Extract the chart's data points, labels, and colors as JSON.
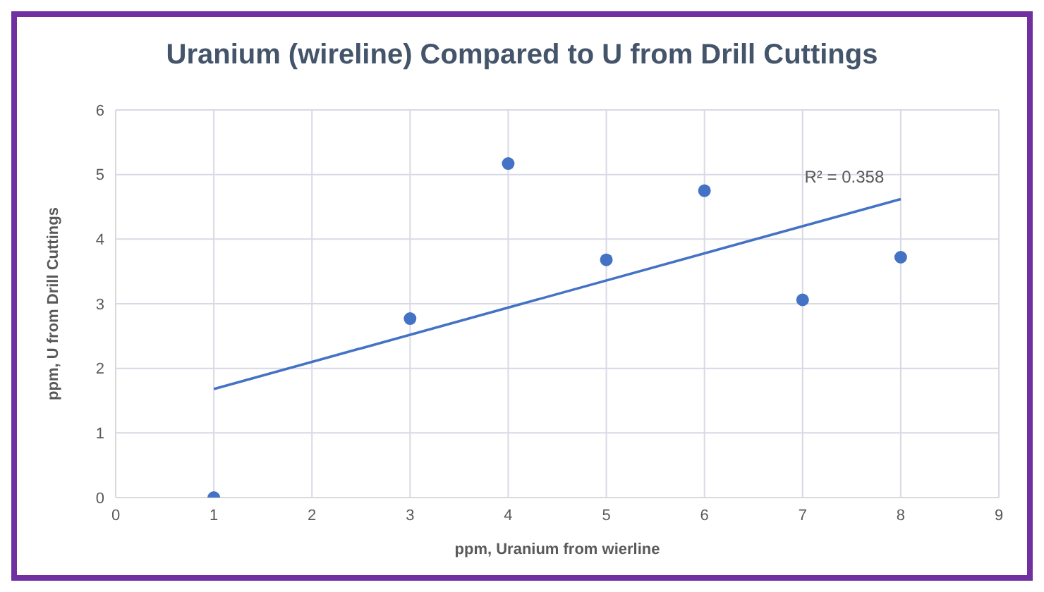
{
  "chart_data": {
    "type": "scatter",
    "title": "Uranium (wireline) Compared to U from Drill Cuttings",
    "xlabel": "ppm, Uranium from wierline",
    "ylabel": "ppm, U from Drill Cuttings",
    "x": [
      1,
      3,
      4,
      5,
      6,
      7,
      8
    ],
    "series": [
      {
        "color": "#4472c4",
        "values": [
          0,
          2.77,
          5.17,
          3.68,
          4.75,
          3.06,
          3.72
        ],
        "marker": "circle"
      },
      {
        "type": "line",
        "color": "#4472c4",
        "x": [
          1,
          8
        ],
        "values": [
          1.68,
          4.62
        ],
        "marker": "none"
      }
    ],
    "annotations": [
      "R² = 0.358"
    ],
    "xlim": [
      0,
      9
    ],
    "xticks": [
      0,
      1,
      2,
      3,
      4,
      5,
      6,
      7,
      8,
      9
    ],
    "ylim": [
      0,
      6
    ],
    "yticks": [
      0,
      1,
      2,
      3,
      4,
      5,
      6
    ],
    "grid": true
  }
}
